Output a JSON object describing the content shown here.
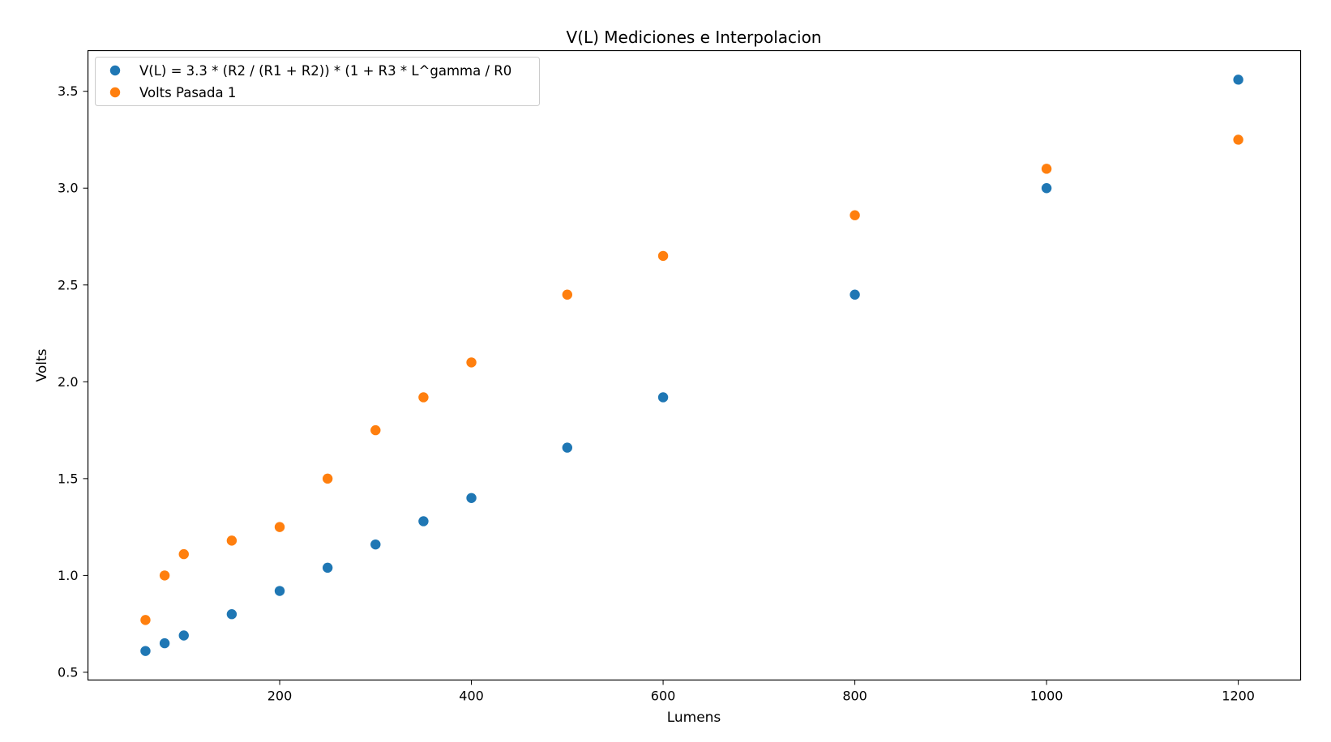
{
  "chart_data": {
    "type": "scatter",
    "title": "V(L) Mediciones e Interpolacion",
    "xlabel": "Lumens",
    "ylabel": "Volts",
    "xlim": [
      0,
      1265
    ],
    "ylim": [
      0.46,
      3.71
    ],
    "xticks": [
      200,
      400,
      600,
      800,
      1000,
      1200
    ],
    "yticks": [
      0.5,
      1.0,
      1.5,
      2.0,
      2.5,
      3.0,
      3.5
    ],
    "xtick_labels": [
      "200",
      "400",
      "600",
      "800",
      "1000",
      "1200"
    ],
    "ytick_labels": [
      "0.5",
      "1.0",
      "1.5",
      "2.0",
      "2.5",
      "3.0",
      "3.5"
    ],
    "legend_position": "top-left",
    "grid": false,
    "series": [
      {
        "name": "V(L) = 3.3 * (R2 / (R1 + R2)) * (1 + R3 * L^gamma / R0",
        "color": "#1f77b4",
        "x": [
          60,
          80,
          100,
          150,
          200,
          250,
          300,
          350,
          400,
          500,
          600,
          800,
          1000,
          1200
        ],
        "y": [
          0.61,
          0.65,
          0.69,
          0.8,
          0.92,
          1.04,
          1.16,
          1.28,
          1.4,
          1.66,
          1.92,
          2.45,
          3.0,
          3.56
        ]
      },
      {
        "name": "Volts Pasada 1",
        "color": "#ff7f0e",
        "x": [
          60,
          80,
          100,
          150,
          200,
          250,
          300,
          350,
          400,
          500,
          600,
          800,
          1000,
          1200
        ],
        "y": [
          0.77,
          1.0,
          1.11,
          1.18,
          1.25,
          1.5,
          1.75,
          1.92,
          2.1,
          2.45,
          2.65,
          2.86,
          3.1,
          3.25
        ]
      }
    ]
  }
}
